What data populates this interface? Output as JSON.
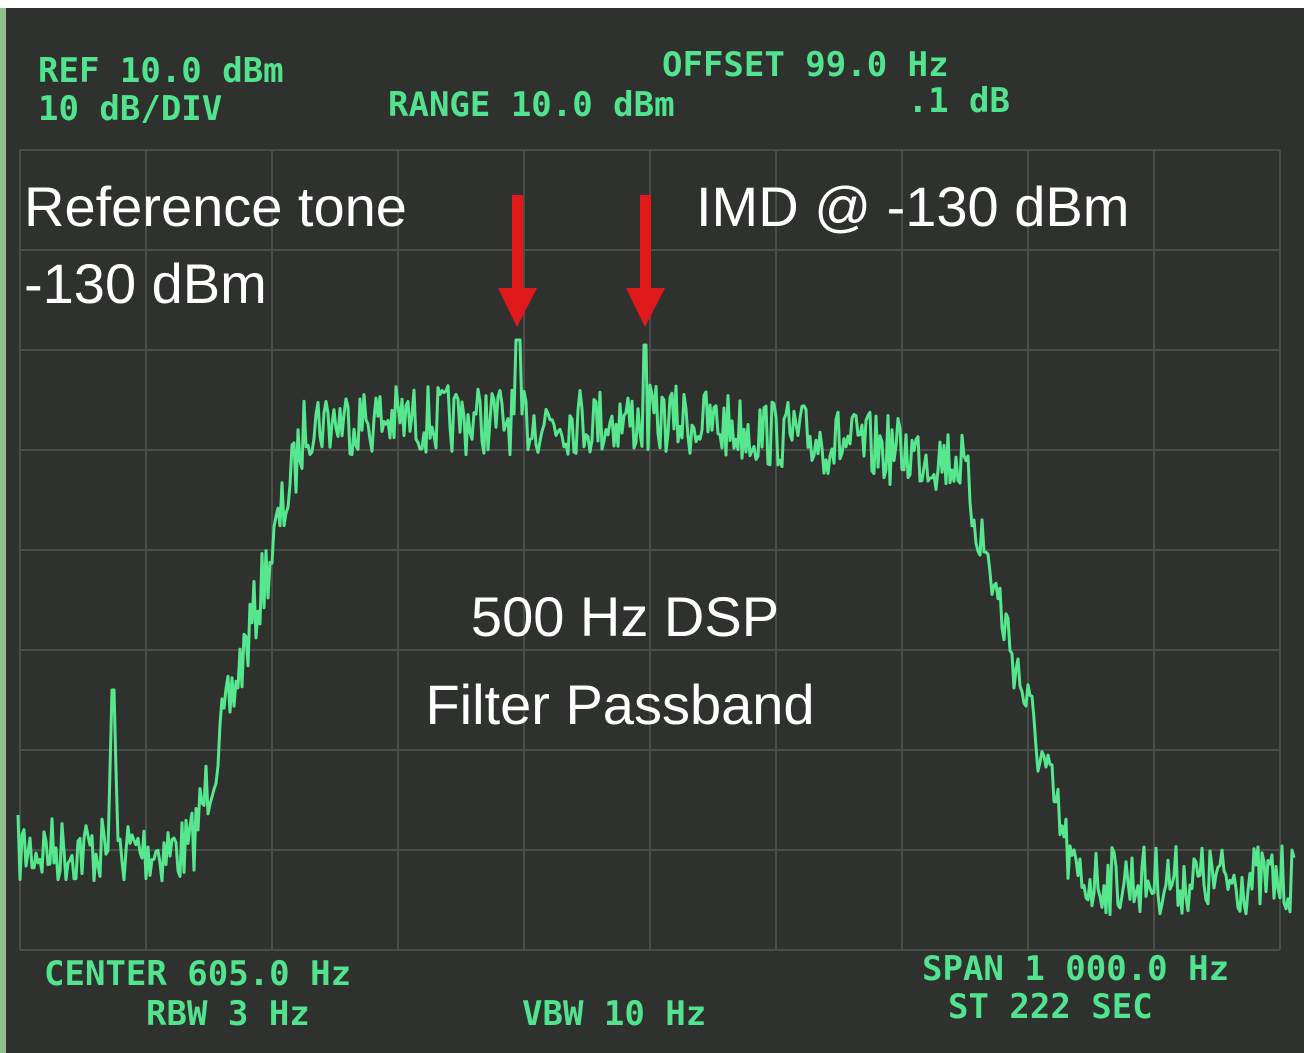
{
  "header": {
    "ref": "REF 10.0 dBm",
    "scale": "10 dB/DIV",
    "range": "RANGE 10.0 dBm",
    "offset": "OFFSET 99.0 Hz",
    "resolution": ".1 dB"
  },
  "annotations": {
    "reference_tone": [
      "Reference tone",
      "-130 dBm"
    ],
    "imd": "IMD @ -130 dBm",
    "passband": [
      "500 Hz DSP",
      "Filter Passband"
    ]
  },
  "footer": {
    "center": "CENTER 605.0 Hz",
    "rbw": "RBW 3 Hz",
    "vbw": "VBW 10 Hz",
    "span": "SPAN 1 000.0 Hz",
    "sweep": "ST 222 SEC"
  }
}
